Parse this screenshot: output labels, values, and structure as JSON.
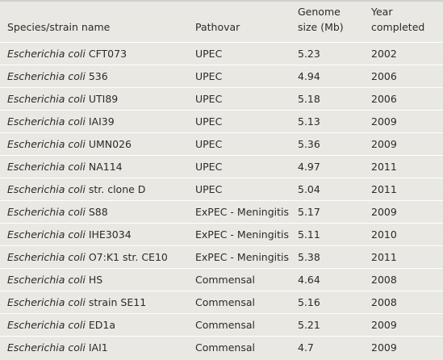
{
  "table": {
    "headers": [
      "Species/strain name",
      "Pathovar",
      "Genome size (Mb)",
      "Year completed"
    ],
    "header_lines": {
      "col1": [
        "Species/strain name"
      ],
      "col2": [
        "Pathovar"
      ],
      "col3": [
        "Genome",
        "size (Mb)"
      ],
      "col4": [
        "Year",
        "completed"
      ]
    },
    "rows": [
      {
        "species": "Escherichia coli",
        "strain": " CFT073",
        "pathovar": "UPEC",
        "size": "5.23",
        "year": "2002"
      },
      {
        "species": "Escherichia coli",
        "strain": " 536",
        "pathovar": "UPEC",
        "size": "4.94",
        "year": "2006"
      },
      {
        "species": "Escherichia coli",
        "strain": " UTI89",
        "pathovar": "UPEC",
        "size": "5.18",
        "year": "2006"
      },
      {
        "species": "Escherichia coli",
        "strain": " IAI39",
        "pathovar": "UPEC",
        "size": "5.13",
        "year": "2009"
      },
      {
        "species": "Escherichia coli",
        "strain": " UMN026",
        "pathovar": "UPEC",
        "size": "5.36",
        "year": "2009"
      },
      {
        "species": "Escherichia coli",
        "strain": " NA114",
        "pathovar": "UPEC",
        "size": "4.97",
        "year": "2011"
      },
      {
        "species": "Escherichia coli",
        "strain": " str. clone D",
        "pathovar": "UPEC",
        "size": "5.04",
        "year": "2011"
      },
      {
        "species": "Escherichia coli",
        "strain": " S88",
        "pathovar": "ExPEC - Meningitis",
        "size": "5.17",
        "year": "2009"
      },
      {
        "species": "Escherichia coli",
        "strain": " IHE3034",
        "pathovar": "ExPEC - Meningitis",
        "size": "5.11",
        "year": "2010"
      },
      {
        "species": "Escherichia coli",
        "strain": " O7:K1 str. CE10",
        "pathovar": "ExPEC - Meningitis",
        "size": "5.38",
        "year": "2011"
      },
      {
        "species": "Escherichia coli",
        "strain": " HS",
        "pathovar": "Commensal",
        "size": "4.64",
        "year": "2008"
      },
      {
        "species": "Escherichia coli",
        "strain": " strain SE11",
        "pathovar": "Commensal",
        "size": "5.16",
        "year": "2008"
      },
      {
        "species": "Escherichia coli",
        "strain": " ED1a",
        "pathovar": "Commensal",
        "size": "5.21",
        "year": "2009"
      },
      {
        "species": "Escherichia coli",
        "strain": " IAI1",
        "pathovar": "Commensal",
        "size": "4.7",
        "year": "2009"
      }
    ]
  },
  "colors": {
    "background": "#e9e8e2",
    "row_separator": "#ffffff",
    "text": "#2b2b2b"
  }
}
